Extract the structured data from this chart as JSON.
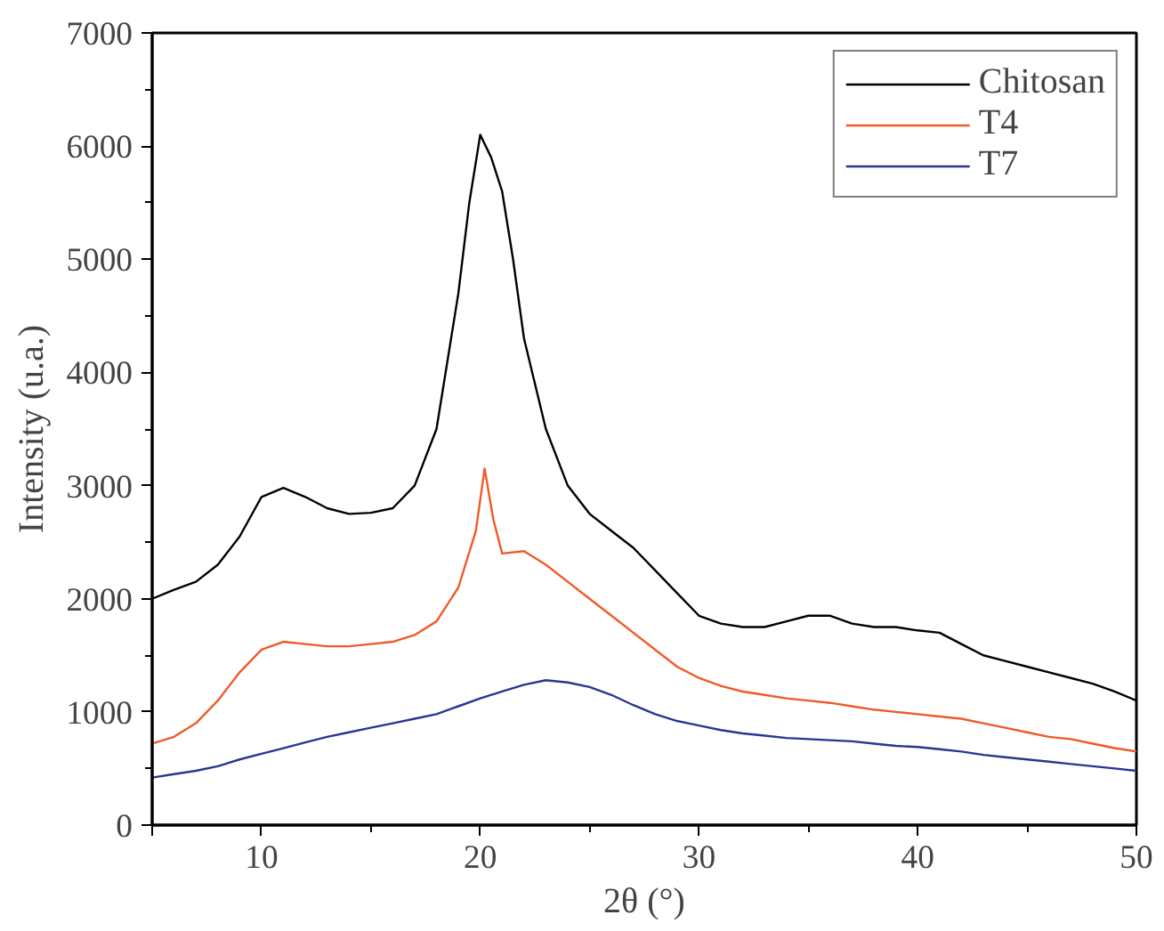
{
  "chart_data": {
    "type": "line",
    "xlabel": "2θ (°)",
    "ylabel": "Intensity (u.a.)",
    "xlim": [
      5,
      50
    ],
    "xticks": [
      {
        "value": 5,
        "label": null
      },
      10,
      20,
      30,
      40,
      50
    ],
    "ylim": [
      0,
      7000
    ],
    "yticks": [
      0,
      1000,
      2000,
      3000,
      4000,
      5000,
      6000,
      7000
    ],
    "grid": false,
    "legend": "top right",
    "line_style": "solid",
    "marker": "none",
    "series": [
      {
        "name": "Chitosan",
        "color": "#000000",
        "x": [
          5,
          6,
          7,
          8,
          9,
          10,
          11,
          12,
          13,
          14,
          15,
          16,
          17,
          18,
          19,
          19.5,
          20,
          20.5,
          21,
          21.5,
          22,
          23,
          24,
          25,
          26,
          27,
          28,
          29,
          30,
          31,
          32,
          33,
          34,
          35,
          36,
          37,
          38,
          39,
          40,
          41,
          42,
          43,
          44,
          45,
          46,
          47,
          48,
          49,
          50
        ],
        "values": [
          2000,
          2080,
          2150,
          2300,
          2550,
          2900,
          2980,
          2900,
          2800,
          2750,
          2760,
          2800,
          3000,
          3500,
          4700,
          5500,
          6100,
          5900,
          5600,
          5000,
          4300,
          3500,
          3000,
          2750,
          2600,
          2450,
          2250,
          2050,
          1850,
          1780,
          1750,
          1750,
          1800,
          1850,
          1850,
          1780,
          1750,
          1750,
          1720,
          1700,
          1600,
          1500,
          1450,
          1400,
          1350,
          1300,
          1250,
          1180,
          1100
        ]
      },
      {
        "name": "T4",
        "color": "#f05a28",
        "x": [
          5,
          6,
          7,
          8,
          9,
          10,
          11,
          12,
          13,
          14,
          15,
          16,
          17,
          18,
          19,
          19.8,
          20.2,
          20.6,
          21,
          22,
          23,
          24,
          25,
          26,
          27,
          28,
          29,
          30,
          31,
          32,
          33,
          34,
          35,
          36,
          37,
          38,
          39,
          40,
          41,
          42,
          43,
          44,
          45,
          46,
          47,
          48,
          49,
          50
        ],
        "values": [
          720,
          780,
          900,
          1100,
          1350,
          1550,
          1620,
          1600,
          1580,
          1580,
          1600,
          1620,
          1680,
          1800,
          2100,
          2600,
          3150,
          2700,
          2400,
          2420,
          2300,
          2150,
          2000,
          1850,
          1700,
          1550,
          1400,
          1300,
          1230,
          1180,
          1150,
          1120,
          1100,
          1080,
          1050,
          1020,
          1000,
          980,
          960,
          940,
          900,
          860,
          820,
          780,
          760,
          720,
          680,
          650
        ]
      },
      {
        "name": "T7",
        "color": "#2a3593",
        "x": [
          5,
          6,
          7,
          8,
          9,
          10,
          11,
          12,
          13,
          14,
          15,
          16,
          17,
          18,
          19,
          20,
          21,
          22,
          23,
          24,
          25,
          26,
          27,
          28,
          29,
          30,
          31,
          32,
          33,
          34,
          35,
          36,
          37,
          38,
          39,
          40,
          41,
          42,
          43,
          44,
          45,
          46,
          47,
          48,
          49,
          50
        ],
        "values": [
          420,
          450,
          480,
          520,
          580,
          630,
          680,
          730,
          780,
          820,
          860,
          900,
          940,
          980,
          1050,
          1120,
          1180,
          1240,
          1280,
          1260,
          1220,
          1150,
          1060,
          980,
          920,
          880,
          840,
          810,
          790,
          770,
          760,
          750,
          740,
          720,
          700,
          690,
          670,
          650,
          620,
          600,
          580,
          560,
          540,
          520,
          500,
          480
        ]
      }
    ]
  }
}
